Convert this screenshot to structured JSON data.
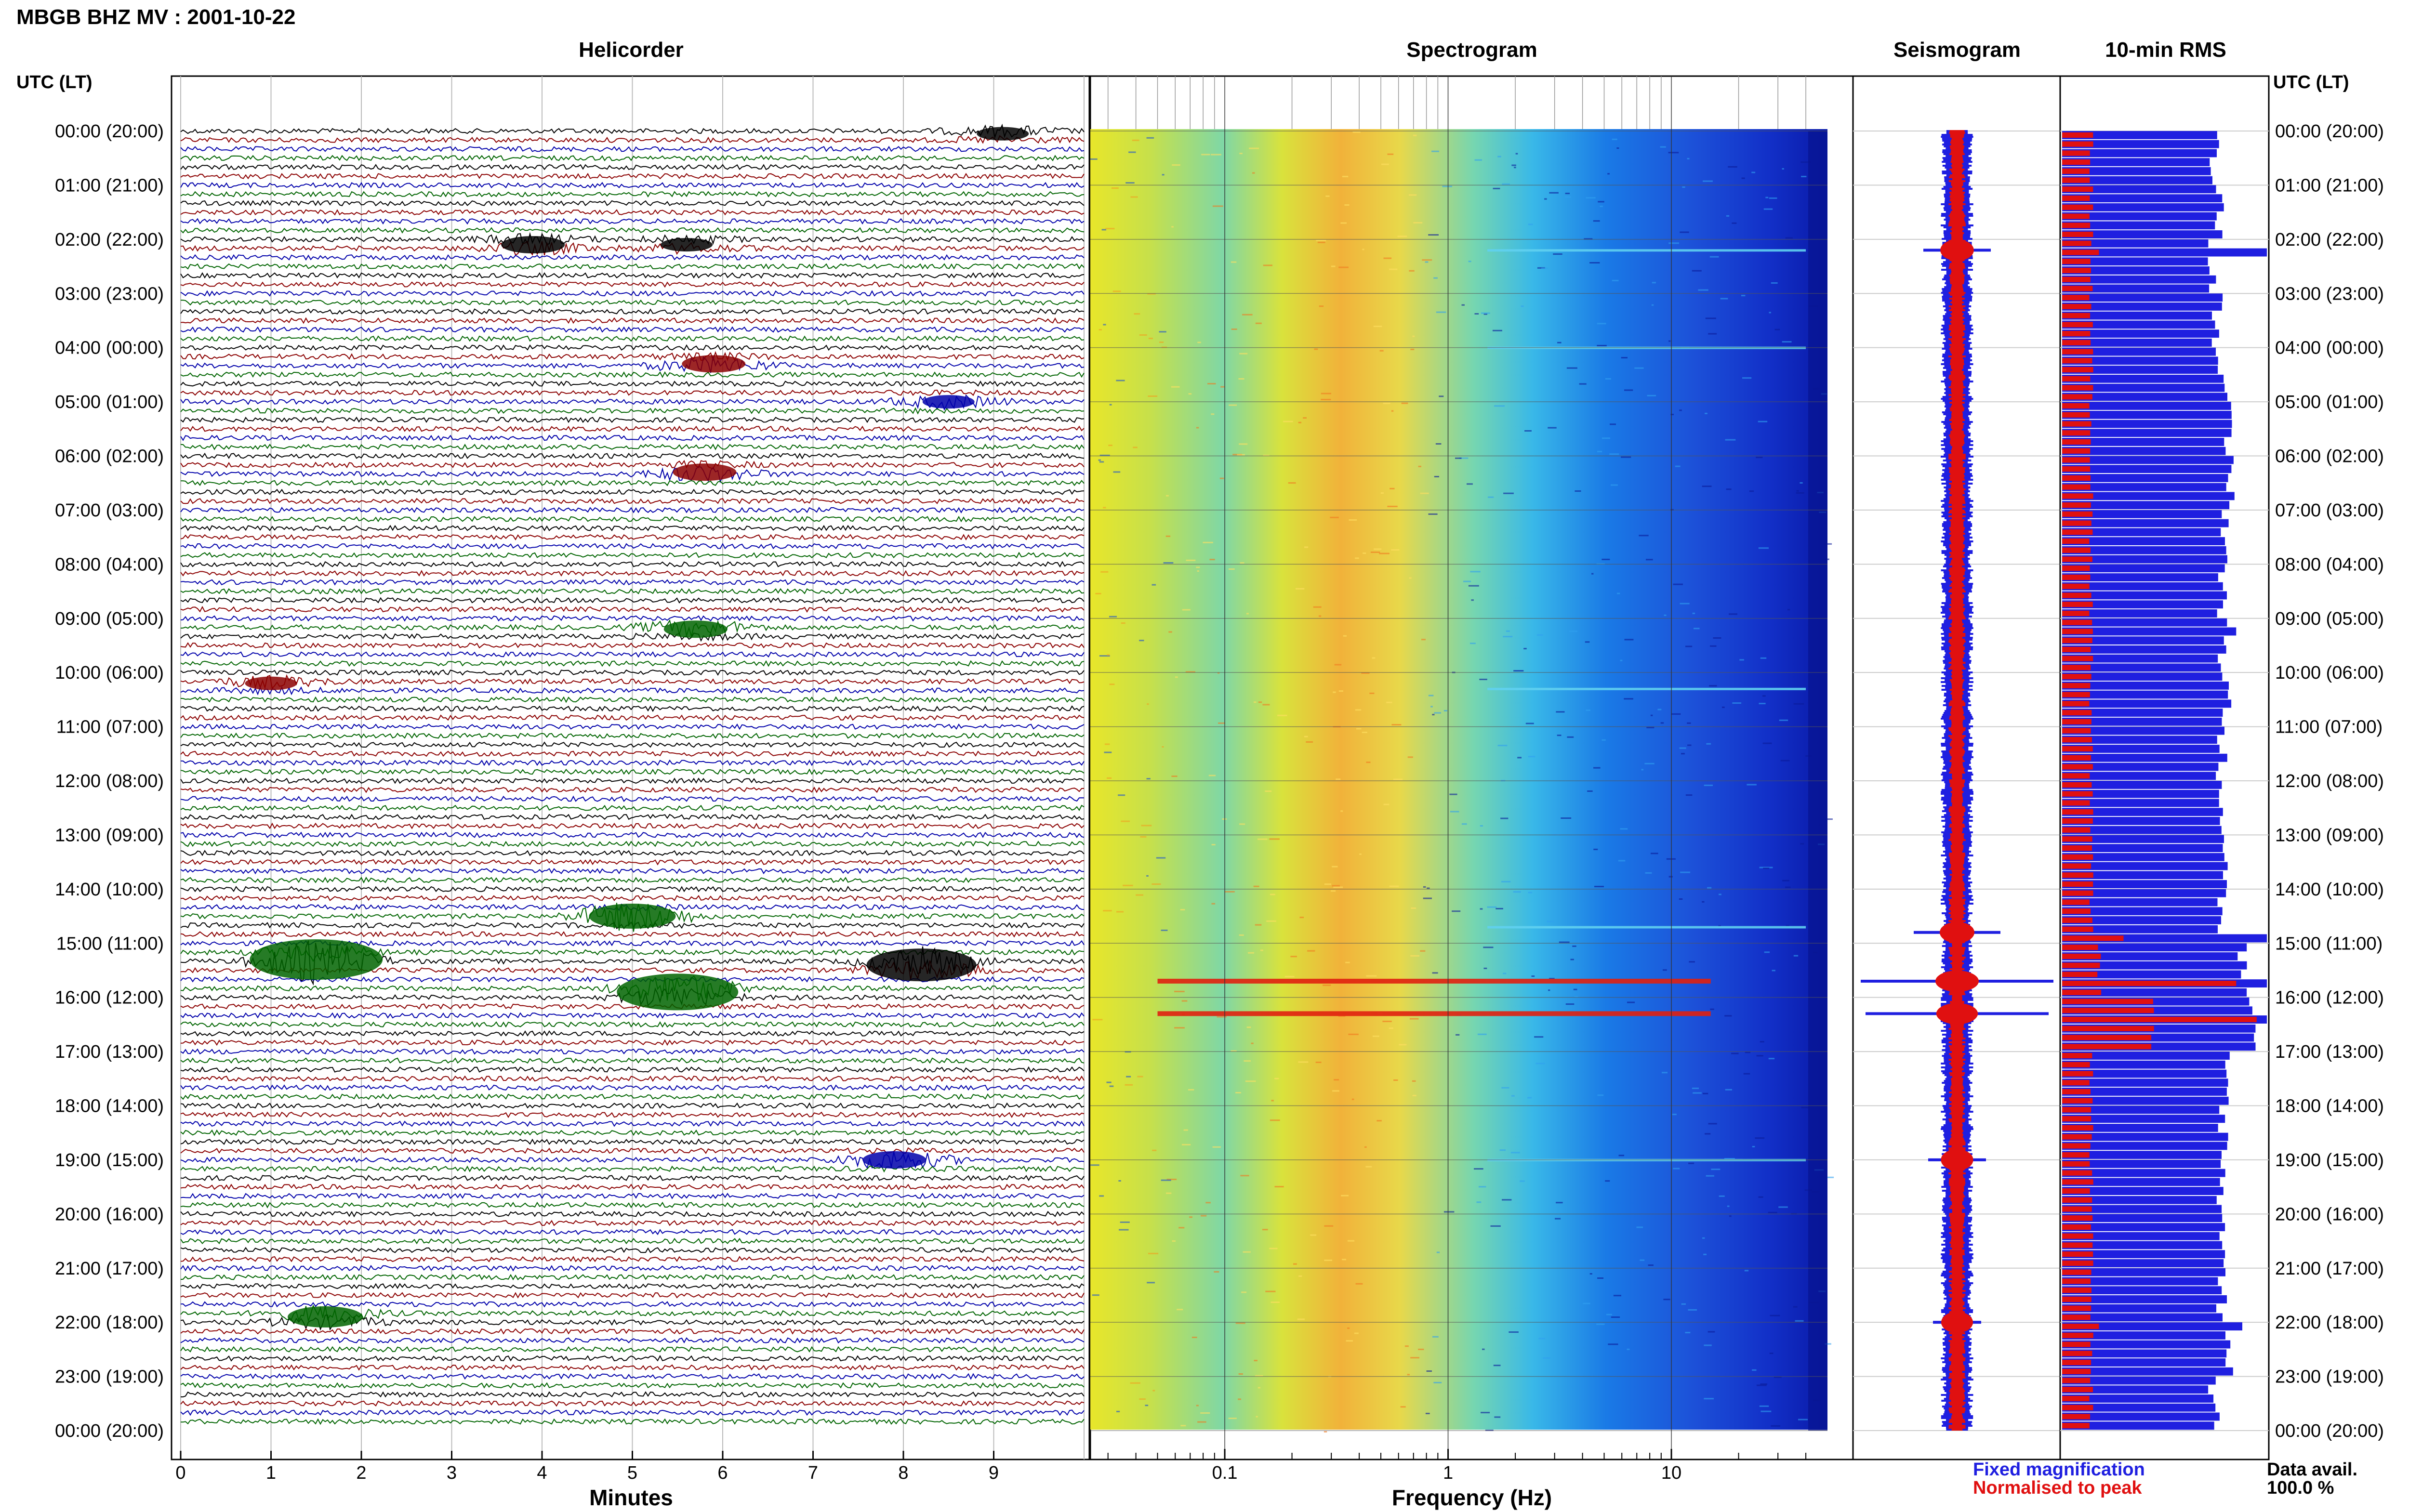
{
  "title": "MBGB BHZ MV : 2001-10-22",
  "time_axis_label": "UTC (LT)",
  "panels": {
    "helicorder": "Helicorder",
    "spectrogram": "Spectrogram",
    "seismogram": "Seismogram",
    "rms": "10-min RMS"
  },
  "time_labels": [
    "00:00 (20:00)",
    "01:00 (21:00)",
    "02:00 (22:00)",
    "03:00 (23:00)",
    "04:00 (00:00)",
    "05:00 (01:00)",
    "06:00 (02:00)",
    "07:00 (03:00)",
    "08:00 (04:00)",
    "09:00 (05:00)",
    "10:00 (06:00)",
    "11:00 (07:00)",
    "12:00 (08:00)",
    "13:00 (09:00)",
    "14:00 (10:00)",
    "15:00 (11:00)",
    "16:00 (12:00)",
    "17:00 (13:00)",
    "18:00 (14:00)",
    "19:00 (15:00)",
    "20:00 (16:00)",
    "21:00 (17:00)",
    "22:00 (18:00)",
    "23:00 (19:00)",
    "00:00 (20:00)"
  ],
  "legend": {
    "fixed": "Fixed magnification",
    "normalised": "Normalised to peak",
    "fixed_color": "#1f1fe0",
    "normalised_color": "#e01010"
  },
  "data_avail": {
    "label": "Data avail.",
    "value": "100.0 %"
  },
  "chart_data": [
    {
      "type": "line",
      "name": "helicorder",
      "xlabel": "Minutes",
      "x_ticks": [
        "0",
        "1",
        "2",
        "3",
        "4",
        "5",
        "6",
        "7",
        "8",
        "9"
      ],
      "xlim": [
        0,
        10
      ],
      "trace_colors": [
        "#000000",
        "#8b0000",
        "#0000aa",
        "#006400"
      ],
      "events": [
        {
          "hour": 0.05,
          "minute": 9.1,
          "amp": 2
        },
        {
          "hour": 2.1,
          "minute": 3.9,
          "amp": 3
        },
        {
          "hour": 2.1,
          "minute": 5.6,
          "amp": 2
        },
        {
          "hour": 4.3,
          "minute": 5.9,
          "amp": 3
        },
        {
          "hour": 5.0,
          "minute": 8.5,
          "amp": 2
        },
        {
          "hour": 6.3,
          "minute": 5.8,
          "amp": 3
        },
        {
          "hour": 9.2,
          "minute": 5.7,
          "amp": 3
        },
        {
          "hour": 10.2,
          "minute": 1.0,
          "amp": 2
        },
        {
          "hour": 14.5,
          "minute": 5.0,
          "amp": 5
        },
        {
          "hour": 15.3,
          "minute": 1.5,
          "amp": 9
        },
        {
          "hour": 15.4,
          "minute": 8.2,
          "amp": 7
        },
        {
          "hour": 15.9,
          "minute": 5.5,
          "amp": 8
        },
        {
          "hour": 19.0,
          "minute": 7.9,
          "amp": 3
        },
        {
          "hour": 21.9,
          "minute": 1.6,
          "amp": 4
        }
      ]
    },
    {
      "type": "heatmap",
      "name": "spectrogram",
      "xlabel": "Frequency (Hz)",
      "x_ticks": [
        "0.1",
        "1",
        "10"
      ],
      "x_scale": "log",
      "xlim": [
        0.025,
        50
      ],
      "events_hours": [
        2.2,
        4.0,
        10.3,
        14.7,
        15.7,
        16.3,
        19.0
      ]
    },
    {
      "type": "line",
      "name": "seismogram",
      "spikes": [
        {
          "hour": 2.2,
          "fixed": 0.35,
          "normalised": 0.08
        },
        {
          "hour": 14.8,
          "fixed": 0.45,
          "normalised": 0.1
        },
        {
          "hour": 15.7,
          "fixed": 1.0,
          "normalised": 0.25
        },
        {
          "hour": 16.3,
          "fixed": 0.95,
          "normalised": 0.22
        },
        {
          "hour": 19.0,
          "fixed": 0.3,
          "normalised": 0.06
        },
        {
          "hour": 22.0,
          "fixed": 0.25,
          "normalised": 0.05
        }
      ]
    },
    {
      "type": "bar",
      "name": "10-min RMS",
      "series": [
        {
          "color": "#1f1fe0",
          "values_by_hour": [
            0.75,
            0.77,
            0.74,
            0.76,
            0.78,
            0.8,
            0.82,
            0.8,
            0.78,
            0.79,
            0.8,
            0.78,
            0.79,
            0.8,
            0.78,
            0.88,
            0.92,
            0.8,
            0.79,
            0.78,
            0.79,
            0.78,
            0.82,
            0.74
          ]
        },
        {
          "color": "#e01010",
          "values_by_hour": [
            0.15,
            0.15,
            0.15,
            0.15,
            0.15,
            0.15,
            0.15,
            0.15,
            0.15,
            0.15,
            0.15,
            0.15,
            0.15,
            0.15,
            0.15,
            0.22,
            0.7,
            0.15,
            0.15,
            0.15,
            0.15,
            0.15,
            0.15,
            0.15
          ]
        }
      ],
      "peaks": [
        {
          "hour": 2.2,
          "blue": 1.0,
          "red": 0.18
        },
        {
          "hour": 9.2,
          "blue": 0.85,
          "red": 0.15
        },
        {
          "hour": 14.8,
          "blue": 1.0,
          "red": 0.3
        },
        {
          "hour": 15.7,
          "blue": 1.0,
          "red": 0.85
        },
        {
          "hour": 16.3,
          "blue": 1.0,
          "red": 0.95
        },
        {
          "hour": 22.0,
          "blue": 0.88,
          "red": 0.18
        }
      ]
    }
  ]
}
